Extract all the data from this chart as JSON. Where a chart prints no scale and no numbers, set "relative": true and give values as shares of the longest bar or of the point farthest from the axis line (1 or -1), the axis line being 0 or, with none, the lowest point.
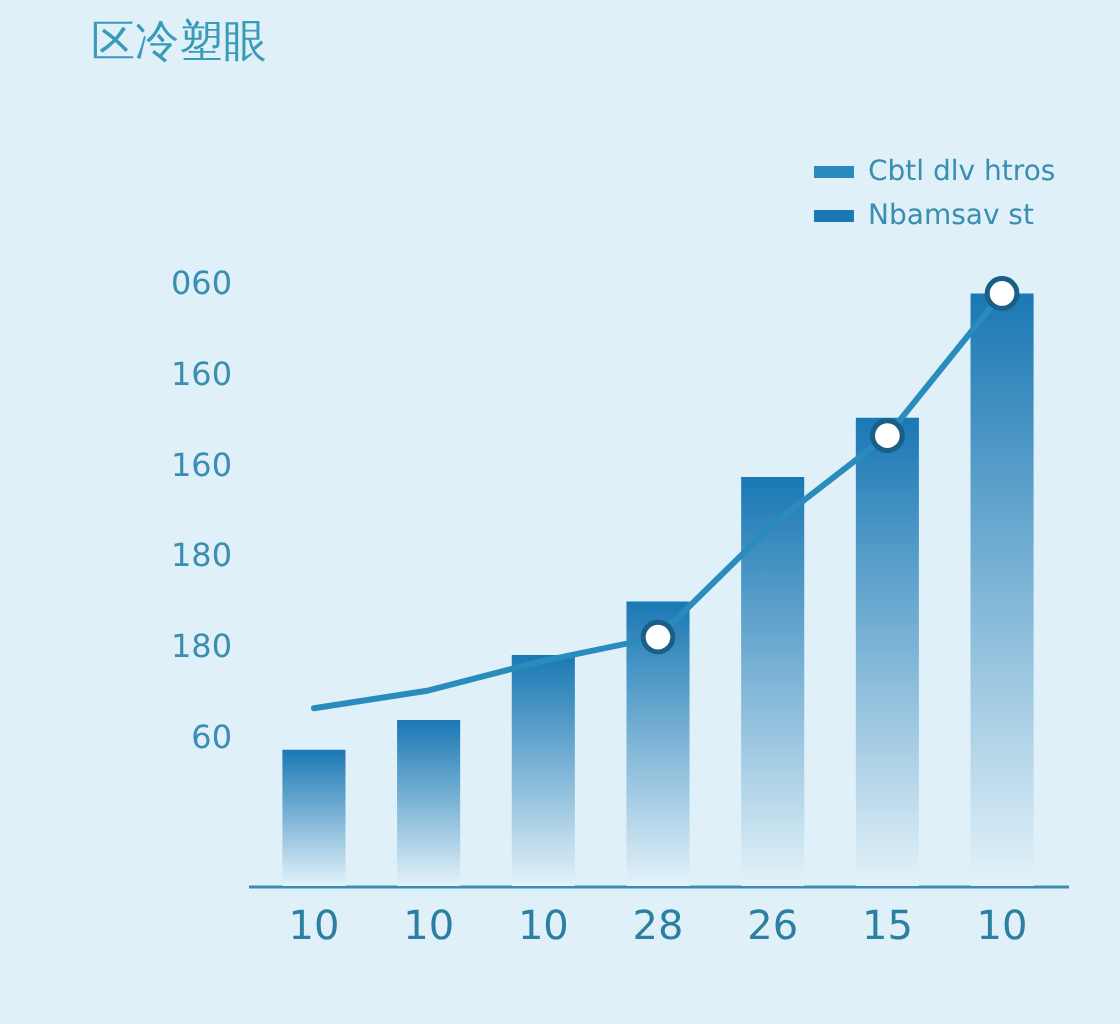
{
  "chart_data": {
    "type": "bar",
    "title": "区冷塑眼",
    "relative": true,
    "categories": [
      "10",
      "10",
      "10",
      "28",
      "26",
      "15",
      "10"
    ],
    "annotations": [
      "060",
      "160",
      "160",
      "180",
      "180",
      "60"
    ],
    "legend": "top right",
    "series": [
      {
        "name": "Nbamsav st",
        "color": "#1a78b4",
        "values": [
          0.23,
          0.28,
          0.39,
          0.48,
          0.69,
          0.79,
          1
        ]
      },
      {
        "name": "Cbtl dlv htros",
        "type": "line",
        "color": "#2a8cbc",
        "marker": "none",
        "values": [
          0.3,
          0.33,
          0.38,
          0.42,
          0.61,
          0.76,
          1
        ]
      },
      {
        "type": "scatter",
        "color": "#ffffff",
        "marker": "circle",
        "values": [
          null,
          null,
          null,
          0.42,
          null,
          0.76,
          1
        ]
      }
    ]
  }
}
